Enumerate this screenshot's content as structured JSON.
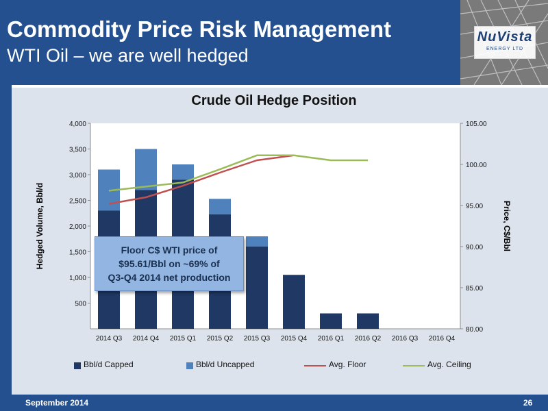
{
  "header": {
    "title": "Commodity Price Risk Management",
    "subtitle": "WTI Oil – we are well hedged"
  },
  "logo": {
    "name": "NuVista",
    "tagline": "ENERGY LTD"
  },
  "callout": {
    "text": "Floor C$ WTI price of\n$95.61/Bbl on ~69% of\nQ3-Q4 2014 net production"
  },
  "footer": {
    "date": "September 2014",
    "page": "26"
  },
  "colors": {
    "header_bg": "#24508f",
    "capped": "#1f3864",
    "uncapped": "#4f81bd",
    "floor": "#c0504d",
    "ceiling": "#9bbb59",
    "panel_bg": "#dde3ec"
  },
  "chart_data": {
    "type": "bar",
    "title": "Crude Oil Hedge Position",
    "ylabel": "Hedged Volume, Bbl/d",
    "ylabel_right": "Price, C$/Bbl",
    "categories": [
      "2014 Q3",
      "2014 Q4",
      "2015 Q1",
      "2015 Q2",
      "2015 Q3",
      "2015 Q4",
      "2016 Q1",
      "2016 Q2",
      "2016 Q3",
      "2016 Q4"
    ],
    "ylim": [
      0,
      4000
    ],
    "ylim_right": [
      80,
      105
    ],
    "yticks": [
      "500",
      "1,000",
      "1,500",
      "2,000",
      "2,500",
      "3,000",
      "3,500",
      "4,000"
    ],
    "yticks_right": [
      "80.00",
      "85.00",
      "90.00",
      "95.00",
      "100.00",
      "105.00"
    ],
    "stacked": true,
    "grid": false,
    "legend_position": "bottom",
    "series": [
      {
        "name": "Bbl/d Capped",
        "kind": "bar",
        "axis": "left",
        "values": [
          2300,
          2700,
          2900,
          2230,
          1600,
          1050,
          300,
          300,
          0,
          0
        ]
      },
      {
        "name": "Bbl/d Uncapped",
        "kind": "bar",
        "axis": "left",
        "values": [
          800,
          800,
          300,
          300,
          200,
          0,
          0,
          0,
          0,
          0
        ]
      },
      {
        "name": "Avg. Floor",
        "kind": "line",
        "axis": "right",
        "values": [
          95.2,
          96.0,
          97.4,
          99.0,
          100.5,
          101.1,
          null,
          null,
          null,
          null
        ]
      },
      {
        "name": "Avg. Ceiling",
        "kind": "line",
        "axis": "right",
        "values": [
          96.8,
          97.3,
          97.8,
          99.4,
          101.1,
          101.1,
          100.5,
          100.5,
          null,
          null
        ]
      }
    ]
  }
}
